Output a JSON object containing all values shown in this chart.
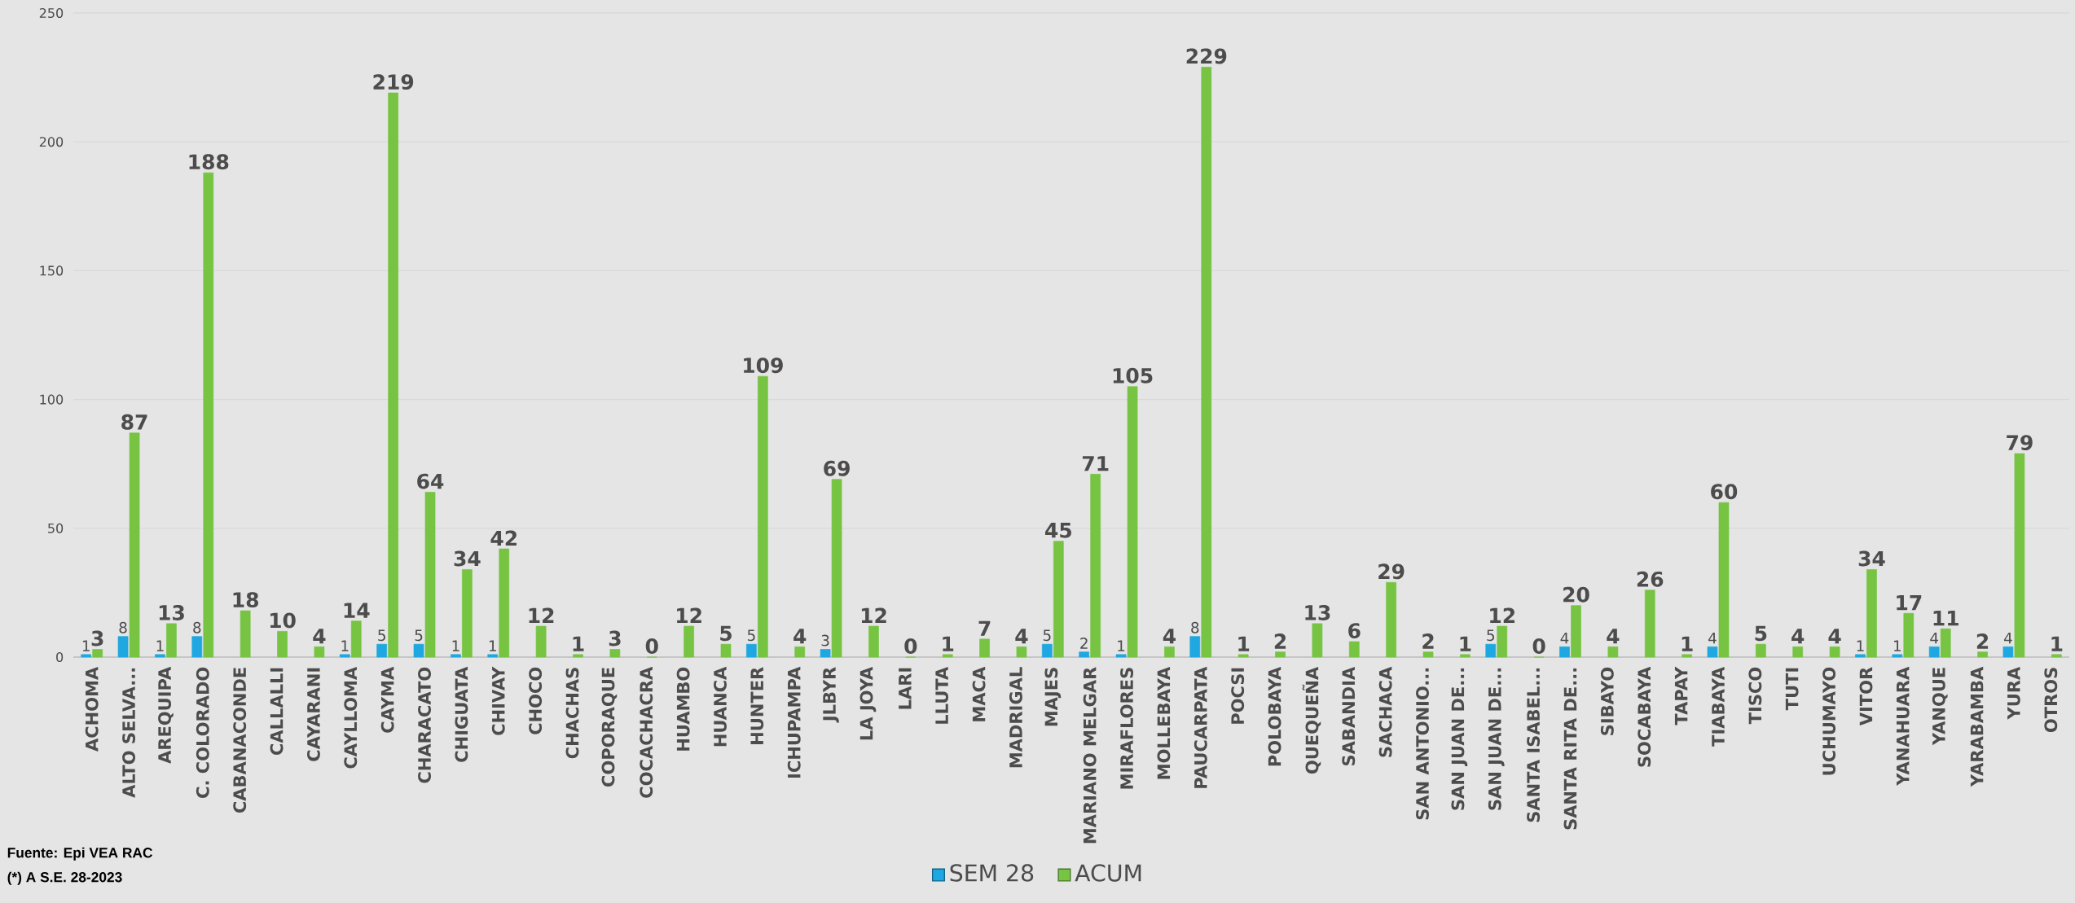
{
  "chart_data": {
    "type": "bar",
    "categories": [
      "ACHOMA",
      "ALTO SELVA...",
      "AREQUIPA",
      "C. COLORADO",
      "CABANACONDE",
      "CALLALLI",
      "CAYARANI",
      "CAYLLOMA",
      "CAYMA",
      "CHARACATO",
      "CHIGUATA",
      "CHIVAY",
      "CHOCO",
      "CHACHAS",
      "COPORAQUE",
      "COCACHACRA",
      "HUAMBO",
      "HUANCA",
      "HUNTER",
      "ICHUPAMPA",
      "JLBYR",
      "LA JOYA",
      "LARI",
      "LLUTA",
      "MACA",
      "MADRIGAL",
      "MAJES",
      "MARIANO MELGAR",
      "MIRAFLORES",
      "MOLLEBAYA",
      "PAUCARPATA",
      "POCSI",
      "POLOBAYA",
      "QUEQUEÑA",
      "SABANDIA",
      "SACHACA",
      "SAN ANTONIO...",
      "SAN JUAN DE...",
      "SAN JUAN DE...",
      "SANTA ISABEL...",
      "SANTA RITA DE...",
      "SIBAYO",
      "SOCABAYA",
      "TAPAY",
      "TIABAYA",
      "TISCO",
      "TUTI",
      "UCHUMAYO",
      "VITOR",
      "YANAHUARA",
      "YANQUE",
      "YARABAMBA",
      "YURA",
      "OTROS"
    ],
    "series": [
      {
        "name": "SEM 28",
        "color": "#1ea7e0",
        "values": [
          1,
          8,
          1,
          8,
          null,
          null,
          null,
          1,
          5,
          5,
          1,
          1,
          null,
          null,
          null,
          null,
          null,
          null,
          5,
          null,
          3,
          null,
          null,
          null,
          null,
          null,
          5,
          2,
          1,
          null,
          8,
          null,
          null,
          null,
          null,
          null,
          null,
          null,
          5,
          null,
          4,
          null,
          null,
          null,
          4,
          null,
          null,
          null,
          1,
          1,
          4,
          null,
          4,
          null
        ]
      },
      {
        "name": "ACUM",
        "color": "#76c442",
        "values": [
          3,
          87,
          13,
          188,
          18,
          10,
          4,
          14,
          219,
          64,
          34,
          42,
          12,
          1,
          3,
          0,
          12,
          5,
          109,
          4,
          69,
          12,
          0,
          1,
          7,
          4,
          45,
          71,
          105,
          4,
          229,
          1,
          2,
          13,
          6,
          29,
          2,
          1,
          12,
          0,
          20,
          4,
          26,
          1,
          60,
          5,
          4,
          4,
          34,
          17,
          11,
          2,
          79,
          1
        ]
      }
    ],
    "ylim": [
      0,
      250
    ],
    "yticks": [
      0,
      50,
      100,
      150,
      200,
      250
    ],
    "grid": "y",
    "legend": "bottom",
    "data_labels": true,
    "annotations": [
      "Fuente: Epi VEA RAC",
      "(*) A S.E. 28-2023"
    ]
  }
}
